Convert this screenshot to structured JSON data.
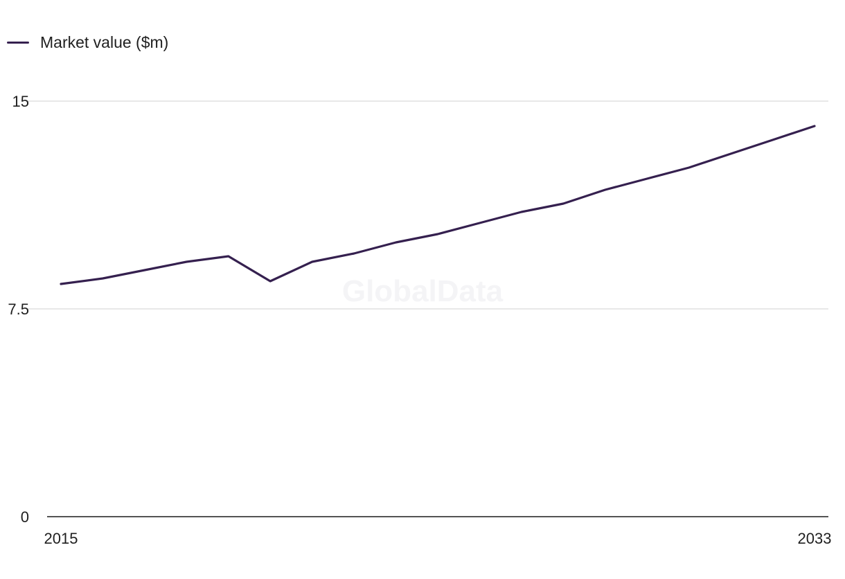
{
  "legend": {
    "label": "Market value ($m)"
  },
  "watermark": "GlobalData",
  "colors": {
    "series": "#35204f",
    "grid": "#d9d9d9",
    "axis": "#1a1a1a",
    "text": "#1f1f1f"
  },
  "chart_data": {
    "type": "line",
    "title": "",
    "xlabel": "",
    "ylabel": "",
    "x": [
      2015,
      2016,
      2017,
      2018,
      2019,
      2020,
      2021,
      2022,
      2023,
      2024,
      2025,
      2026,
      2027,
      2028,
      2029,
      2030,
      2031,
      2032,
      2033
    ],
    "series": [
      {
        "name": "Market value ($m)",
        "values": [
          8.4,
          8.6,
          8.9,
          9.2,
          9.4,
          8.5,
          9.2,
          9.5,
          9.9,
          10.2,
          10.6,
          11.0,
          11.3,
          11.8,
          12.2,
          12.6,
          13.1,
          13.6,
          14.1
        ]
      }
    ],
    "xlim": [
      2015,
      2033
    ],
    "ylim": [
      0,
      15
    ],
    "yticks": [
      "0",
      "7.5",
      "15"
    ],
    "xticks": [
      "2015",
      "2033"
    ],
    "grid": true,
    "legend_position": "top-left"
  }
}
